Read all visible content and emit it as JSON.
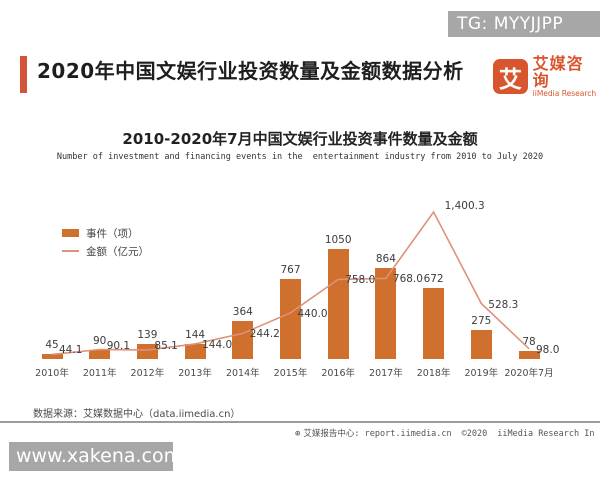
{
  "badge": {
    "text": "TG: MYYJJPP"
  },
  "header": {
    "title": "2020年中国文娱行业投资数量及金额数据分析",
    "logo": {
      "mark": "艾",
      "brand_cn": "艾媒咨询",
      "brand_en": "iiMedia Research"
    }
  },
  "chart": {
    "title": "2010-2020年7月中国文娱行业投资事件数量及金额",
    "subtitle": "Number of investment and financing events in the  entertainment industry from 2010 to July 2020",
    "legend": [
      {
        "label": "事件（项）"
      },
      {
        "label": "金额（亿元）"
      }
    ]
  },
  "chart_data": {
    "type": "bar",
    "categories": [
      "2010年",
      "2011年",
      "2012年",
      "2013年",
      "2014年",
      "2015年",
      "2016年",
      "2017年",
      "2018年",
      "2019年",
      "2020年7月"
    ],
    "series": [
      {
        "name": "事件（项）",
        "type": "bar",
        "color": "#cf702e",
        "values": [
          45,
          90,
          139,
          144,
          364,
          767,
          1050,
          864,
          672,
          275,
          78
        ],
        "labels": [
          "45",
          "90",
          "139",
          "144",
          "364",
          "767",
          "1050",
          "864",
          "672",
          "275",
          "78"
        ]
      },
      {
        "name": "金额（亿元）",
        "type": "line",
        "color": "#dd9279",
        "values": [
          44.1,
          90.1,
          85.1,
          144.0,
          244.2,
          440.0,
          758.0,
          768.0,
          1400.3,
          528.3,
          98.0
        ],
        "labels": [
          "44.1",
          "90.1",
          "85.1",
          "144.0",
          "244.2",
          "440.0",
          "758.0",
          "768.0",
          "1,400.3",
          "528.3",
          "98.0"
        ]
      }
    ],
    "ylim": [
      0,
      1500
    ],
    "grid": false,
    "legend_position": "upper-left"
  },
  "source_note": "数据来源：艾媒数据中心（data.iimedia.cn）",
  "footer": {
    "report_center": "艾媒报告中心: report.iimedia.cn",
    "copyright": "©2020",
    "company": "iiMedia Research In"
  },
  "watermark": {
    "text": "www.xakena.com"
  },
  "colors": {
    "bar": "#cf702e",
    "line": "#dd9279",
    "accent_bar": "#d4543a",
    "logo": "#d9552e",
    "badge_bg": "#a7a7a7",
    "watermark_bg": "#a7a7a7"
  }
}
